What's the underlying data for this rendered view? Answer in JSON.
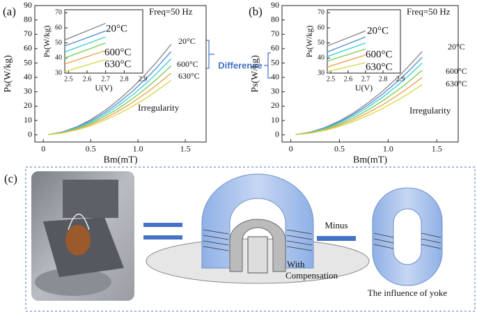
{
  "chart_data": [
    {
      "type": "line",
      "panel_label": "(a)",
      "x_label": "Bm(mT)",
      "y_label": "Ps(W/kg)",
      "x": [
        0.05,
        0.2,
        0.35,
        0.5,
        0.65,
        0.8,
        0.95,
        1.1,
        1.2,
        1.35
      ],
      "xlim": [
        -0.09,
        1.72
      ],
      "xticks": [
        0,
        0.5,
        {
          "value": 1,
          "label": "1.0"
        },
        1.5
      ],
      "ylim": [
        -5,
        90
      ],
      "yticks": [
        0,
        10,
        20,
        30,
        40,
        50,
        60,
        70,
        80,
        90
      ],
      "annotations": [
        "Freq=50 Hz",
        "20°C",
        "600°C",
        "630°C",
        "Irregularity"
      ],
      "series": [
        {
          "color": "#8c8c8c",
          "values": [
            0.2,
            2.0,
            5.5,
            10.5,
            16.9,
            24.6,
            33.5,
            43.6,
            50.9,
            63
          ]
        },
        {
          "color": "#5b8fd6",
          "values": [
            0.2,
            1.9,
            5.1,
            9.7,
            15.5,
            22.6,
            30.8,
            40.1,
            46.9,
            58
          ]
        },
        {
          "color": "#3fd0d8",
          "values": [
            0.1,
            1.7,
            4.7,
            8.9,
            14.2,
            20.7,
            28.2,
            36.7,
            42.9,
            53
          ]
        },
        {
          "color": "#7ccf5a",
          "values": [
            0.1,
            1.5,
            4.2,
            8.0,
            12.9,
            18.7,
            25.5,
            33.2,
            38.9,
            48
          ]
        },
        {
          "color": "#f0a050",
          "values": [
            0.1,
            1.4,
            3.8,
            7.2,
            11.5,
            16.8,
            22.9,
            29.8,
            34.8,
            43
          ]
        },
        {
          "color": "#d8d84a",
          "values": [
            0.1,
            1.2,
            3.3,
            6.3,
            10.2,
            14.8,
            20.2,
            26.2,
            30.7,
            38
          ]
        }
      ],
      "inset": {
        "type": "line",
        "x_label": "U(V)",
        "y_label": "Ps(W/kg)",
        "x": [
          2.48,
          2.7
        ],
        "xlim": [
          2.48,
          2.9
        ],
        "xticks": [
          2.5,
          2.6,
          2.7,
          2.8,
          2.9
        ],
        "ylim": [
          30,
          72
        ],
        "yticks": [
          30,
          40,
          50,
          60,
          70
        ],
        "annotations": [
          "20°C",
          "600°C",
          "630°C"
        ],
        "series": [
          {
            "color": "#8c8c8c",
            "values": [
              52,
              63
            ]
          },
          {
            "color": "#5b8fd6",
            "values": [
              48,
              58
            ]
          },
          {
            "color": "#3fd0d8",
            "values": [
              44,
              54
            ]
          },
          {
            "color": "#7ccf5a",
            "values": [
              40,
              50
            ]
          },
          {
            "color": "#f0a050",
            "values": [
              36,
              45
            ]
          },
          {
            "color": "#d8d84a",
            "values": [
              31,
              39
            ]
          }
        ]
      }
    },
    {
      "type": "line",
      "panel_label": "(b)",
      "x_label": "Bm(mT)",
      "y_label": "Ps(W/kg)",
      "x": [
        0.05,
        0.2,
        0.35,
        0.5,
        0.65,
        0.8,
        0.95,
        1.1,
        1.2,
        1.35
      ],
      "xlim": [
        -0.09,
        1.72
      ],
      "xticks": [
        0,
        0.5,
        {
          "value": 1,
          "label": "1.0"
        },
        1.5
      ],
      "ylim": [
        -5,
        90
      ],
      "yticks": [
        0,
        10,
        20,
        30,
        40,
        50,
        60,
        70,
        80,
        90
      ],
      "annotations": [
        "Freq=50 Hz",
        "20°C",
        "600°C",
        "630°C",
        "Irregularity"
      ],
      "series": [
        {
          "color": "#8c8c8c",
          "values": [
            0.2,
            1.9,
            5.1,
            9.7,
            15.5,
            22.6,
            30.8,
            40.1,
            46.9,
            58
          ]
        },
        {
          "color": "#5b8fd6",
          "values": [
            0.1,
            1.7,
            4.8,
            9.0,
            14.5,
            21.1,
            28.7,
            37.4,
            43.7,
            54
          ]
        },
        {
          "color": "#3fd0d8",
          "values": [
            0.1,
            1.6,
            4.4,
            8.4,
            13.4,
            19.5,
            26.6,
            34.6,
            40.5,
            50
          ]
        },
        {
          "color": "#7ccf5a",
          "values": [
            0.1,
            1.4,
            4.0,
            7.5,
            12.1,
            17.6,
            23.9,
            31.1,
            36.4,
            45
          ]
        },
        {
          "color": "#f0a050",
          "values": [
            0.1,
            1.3,
            3.5,
            6.7,
            10.7,
            15.6,
            21.2,
            27.7,
            32.4,
            40
          ]
        },
        {
          "color": "#d8d84a",
          "values": [
            0.1,
            1.1,
            3.1,
            5.8,
            9.4,
            13.7,
            18.6,
            24.2,
            28.3,
            35
          ]
        }
      ],
      "inset": {
        "type": "line",
        "x_label": "U(V)",
        "y_label": "Ps(W/kg)",
        "x": [
          2.48,
          2.7
        ],
        "xlim": [
          2.48,
          2.9
        ],
        "xticks": [
          2.5,
          2.6,
          2.7,
          2.8,
          2.9
        ],
        "ylim": [
          30,
          72
        ],
        "yticks": [
          30,
          40,
          50,
          60,
          70
        ],
        "annotations": [
          "20°C",
          "600°C",
          "630°C"
        ],
        "series": [
          {
            "color": "#8c8c8c",
            "values": [
              48,
              58
            ]
          },
          {
            "color": "#5b8fd6",
            "values": [
              44,
              54
            ]
          },
          {
            "color": "#3fd0d8",
            "values": [
              41,
              50
            ]
          },
          {
            "color": "#7ccf5a",
            "values": [
              38,
              46
            ]
          },
          {
            "color": "#f0a050",
            "values": [
              34,
              42
            ]
          },
          {
            "color": "#d8d84a",
            "values": [
              31,
              37
            ]
          }
        ]
      }
    }
  ],
  "difference_label": "Difference",
  "panel_c": {
    "label": "(c)",
    "minus": "Minus",
    "with_compensation": [
      "With",
      "Compensation"
    ],
    "yoke": "The influence of yoke"
  }
}
